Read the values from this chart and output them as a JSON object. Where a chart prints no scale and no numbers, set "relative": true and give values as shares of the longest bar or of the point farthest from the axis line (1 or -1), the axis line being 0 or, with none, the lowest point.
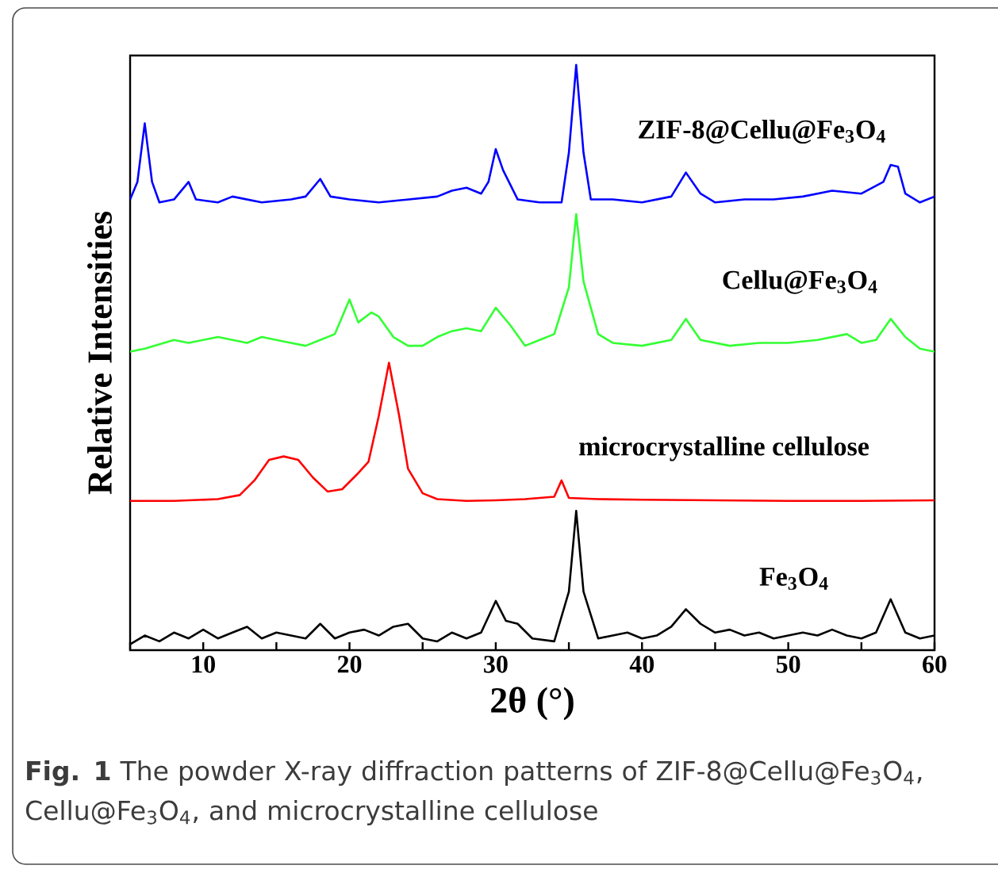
{
  "chart_data": {
    "type": "line",
    "relative": true,
    "xlabel": "2θ (°)",
    "ylabel": "Relative Intensities",
    "xlim": [
      5,
      60
    ],
    "xticks": [
      {
        "value": 5,
        "label": null
      },
      10,
      {
        "value": 15,
        "label": null
      },
      20,
      {
        "value": 25,
        "label": null
      },
      30,
      {
        "value": 35,
        "label": null
      },
      40,
      {
        "value": 45,
        "label": null
      },
      50,
      {
        "value": 55,
        "label": null
      },
      60
    ],
    "grid": false,
    "legend": false,
    "marker": "none",
    "line_style": "solid",
    "annotations": [
      "**Fig. 1** The powder X-ray diffraction patterns of ZIF-8@Cellu@Fe$_{3}$O$_{4}$, Cellu@Fe$_{3}$O$_{4}$, and microcrystalline cellulose"
    ],
    "series": [
      {
        "name": "ZIF-8@Cellu@Fe$_{3}$O$_{4}$",
        "color": "#0000ff",
        "x": [
          5,
          5.5,
          6,
          6.5,
          7,
          8,
          9,
          9.5,
          11,
          12,
          13,
          14,
          16,
          17,
          18,
          18.7,
          20,
          22,
          24,
          26,
          27,
          28,
          29,
          29.5,
          30,
          30.5,
          31.5,
          33,
          34.5,
          35,
          35.5,
          36,
          36.5,
          38,
          40,
          42,
          43,
          44,
          45,
          47,
          49,
          51,
          53,
          55,
          56.5,
          57,
          57.5,
          58,
          59,
          60
        ],
        "values": [
          0.77,
          0.8,
          0.9,
          0.8,
          0.765,
          0.77,
          0.8,
          0.77,
          0.765,
          0.775,
          0.77,
          0.765,
          0.77,
          0.775,
          0.805,
          0.775,
          0.77,
          0.765,
          0.77,
          0.775,
          0.785,
          0.79,
          0.78,
          0.8,
          0.856,
          0.82,
          0.77,
          0.765,
          0.765,
          0.85,
          1.0,
          0.85,
          0.77,
          0.77,
          0.765,
          0.775,
          0.816,
          0.78,
          0.765,
          0.77,
          0.77,
          0.775,
          0.785,
          0.78,
          0.8,
          0.829,
          0.826,
          0.78,
          0.765,
          0.775
        ]
      },
      {
        "name": "Cellu@Fe$_{3}$O$_{4}$",
        "color": "#33ff33",
        "x": [
          5,
          6,
          8,
          9,
          10,
          11,
          12,
          13,
          14,
          15,
          16,
          17,
          18,
          19,
          20,
          20.6,
          21.5,
          22,
          23,
          24,
          25,
          26,
          27,
          28,
          29,
          30,
          31,
          32,
          33,
          34,
          35,
          35.5,
          36,
          37,
          38,
          40,
          42,
          43,
          44,
          46,
          48,
          50,
          52,
          54,
          55,
          56,
          57,
          58,
          59,
          60
        ],
        "values": [
          0.51,
          0.515,
          0.53,
          0.525,
          0.53,
          0.535,
          0.53,
          0.525,
          0.535,
          0.53,
          0.525,
          0.52,
          0.53,
          0.54,
          0.599,
          0.56,
          0.577,
          0.57,
          0.535,
          0.52,
          0.52,
          0.535,
          0.545,
          0.55,
          0.545,
          0.585,
          0.555,
          0.52,
          0.53,
          0.54,
          0.62,
          0.745,
          0.63,
          0.54,
          0.525,
          0.52,
          0.53,
          0.566,
          0.53,
          0.52,
          0.525,
          0.525,
          0.53,
          0.54,
          0.525,
          0.53,
          0.566,
          0.535,
          0.515,
          0.51
        ]
      },
      {
        "name": "microcrystalline cellulose",
        "color": "#ff0000",
        "x": [
          5,
          8,
          11,
          12.5,
          13.5,
          14.5,
          15.5,
          16.5,
          17.5,
          18.5,
          19.5,
          20.5,
          21.3,
          22,
          22.7,
          23.4,
          24,
          25,
          26,
          28,
          30,
          32,
          34,
          34.5,
          35,
          37,
          40,
          45,
          50,
          55,
          60
        ],
        "values": [
          0.255,
          0.255,
          0.258,
          0.265,
          0.29,
          0.325,
          0.331,
          0.325,
          0.295,
          0.271,
          0.275,
          0.3,
          0.322,
          0.4,
          0.491,
          0.4,
          0.31,
          0.268,
          0.258,
          0.255,
          0.256,
          0.258,
          0.262,
          0.29,
          0.26,
          0.258,
          0.257,
          0.256,
          0.255,
          0.255,
          0.256
        ]
      },
      {
        "name": "Fe$_{3}$O$_{4}$",
        "color": "#000000",
        "x": [
          5,
          6,
          7,
          8,
          9,
          10,
          11,
          12,
          13,
          14,
          15,
          16,
          17,
          18,
          19,
          20,
          21,
          22,
          23,
          24,
          25,
          26,
          27,
          28,
          29,
          30,
          30.7,
          31.5,
          32.5,
          34,
          35,
          35.5,
          36,
          37,
          38,
          39,
          40,
          41,
          42,
          43,
          44,
          45,
          46,
          47,
          48,
          49,
          50,
          51,
          52,
          53,
          54,
          55,
          56,
          57,
          58,
          59,
          60
        ],
        "values": [
          0.01,
          0.025,
          0.015,
          0.03,
          0.02,
          0.035,
          0.02,
          0.03,
          0.04,
          0.02,
          0.03,
          0.025,
          0.02,
          0.045,
          0.02,
          0.03,
          0.035,
          0.025,
          0.04,
          0.045,
          0.02,
          0.015,
          0.03,
          0.02,
          0.03,
          0.084,
          0.05,
          0.045,
          0.02,
          0.015,
          0.1,
          0.238,
          0.1,
          0.02,
          0.025,
          0.03,
          0.02,
          0.025,
          0.04,
          0.07,
          0.045,
          0.03,
          0.035,
          0.025,
          0.03,
          0.02,
          0.025,
          0.03,
          0.025,
          0.035,
          0.025,
          0.02,
          0.03,
          0.087,
          0.03,
          0.02,
          0.025
        ]
      }
    ]
  }
}
